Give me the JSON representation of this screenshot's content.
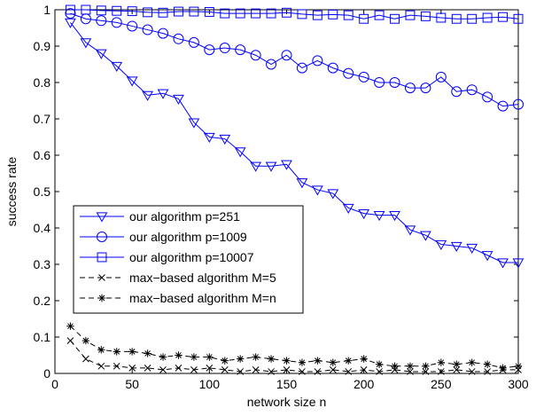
{
  "chart_data": {
    "type": "line",
    "title": "",
    "xlabel": "network size n",
    "ylabel": "success rate",
    "xlim": [
      0,
      300
    ],
    "ylim": [
      0,
      1
    ],
    "xticks": [
      0,
      50,
      100,
      150,
      200,
      250,
      300
    ],
    "yticks": [
      0,
      0.1,
      0.2,
      0.3,
      0.4,
      0.5,
      0.6,
      0.7,
      0.8,
      0.9,
      1
    ],
    "grid": false,
    "legend_position": "center-left",
    "x": [
      10,
      20,
      30,
      40,
      50,
      60,
      70,
      80,
      90,
      100,
      110,
      120,
      130,
      140,
      150,
      160,
      170,
      180,
      190,
      200,
      210,
      220,
      230,
      240,
      250,
      260,
      270,
      280,
      290,
      300
    ],
    "series": [
      {
        "name": "our algorithm p=251",
        "color": "#0000ff",
        "marker": "triangle-down",
        "dash": "solid",
        "values": [
          0.965,
          0.91,
          0.88,
          0.845,
          0.805,
          0.765,
          0.77,
          0.755,
          0.69,
          0.65,
          0.645,
          0.61,
          0.57,
          0.57,
          0.575,
          0.525,
          0.505,
          0.495,
          0.455,
          0.44,
          0.435,
          0.435,
          0.395,
          0.38,
          0.355,
          0.35,
          0.345,
          0.325,
          0.305,
          0.305
        ]
      },
      {
        "name": "our algorithm p=1009",
        "color": "#0000ff",
        "marker": "circle",
        "dash": "solid",
        "values": [
          0.99,
          0.975,
          0.97,
          0.965,
          0.955,
          0.945,
          0.935,
          0.92,
          0.91,
          0.89,
          0.895,
          0.89,
          0.875,
          0.85,
          0.875,
          0.84,
          0.86,
          0.84,
          0.825,
          0.815,
          0.8,
          0.8,
          0.785,
          0.785,
          0.815,
          0.775,
          0.78,
          0.76,
          0.735,
          0.74
        ]
      },
      {
        "name": "our algorithm p=10007",
        "color": "#0000ff",
        "marker": "square",
        "dash": "solid",
        "values": [
          1.0,
          1.0,
          0.998,
          0.997,
          0.996,
          0.993,
          0.992,
          0.995,
          0.995,
          0.994,
          0.99,
          0.99,
          0.99,
          0.99,
          0.992,
          0.988,
          0.985,
          0.987,
          0.985,
          0.975,
          0.985,
          0.975,
          0.985,
          0.982,
          0.978,
          0.975,
          0.975,
          0.978,
          0.98,
          0.975
        ]
      },
      {
        "name": "max−based algorithm M=5",
        "color": "#000000",
        "marker": "x",
        "dash": "dashed",
        "values": [
          0.09,
          0.04,
          0.02,
          0.02,
          0.015,
          0.015,
          0.01,
          0.015,
          0.01,
          0.015,
          0.01,
          0.005,
          0.01,
          0.005,
          0.01,
          0.005,
          0.005,
          0.01,
          0.005,
          0.01,
          0.005,
          0.01,
          0.005,
          0.005,
          0.005,
          0.01,
          0.005,
          0.005,
          0.01,
          0.01
        ]
      },
      {
        "name": "max−based algorithm M=n",
        "color": "#000000",
        "marker": "star",
        "dash": "dashed",
        "values": [
          0.13,
          0.09,
          0.065,
          0.06,
          0.06,
          0.055,
          0.045,
          0.05,
          0.045,
          0.045,
          0.035,
          0.04,
          0.045,
          0.04,
          0.035,
          0.03,
          0.035,
          0.03,
          0.035,
          0.04,
          0.025,
          0.02,
          0.02,
          0.02,
          0.03,
          0.025,
          0.03,
          0.025,
          0.015,
          0.02
        ]
      }
    ]
  }
}
